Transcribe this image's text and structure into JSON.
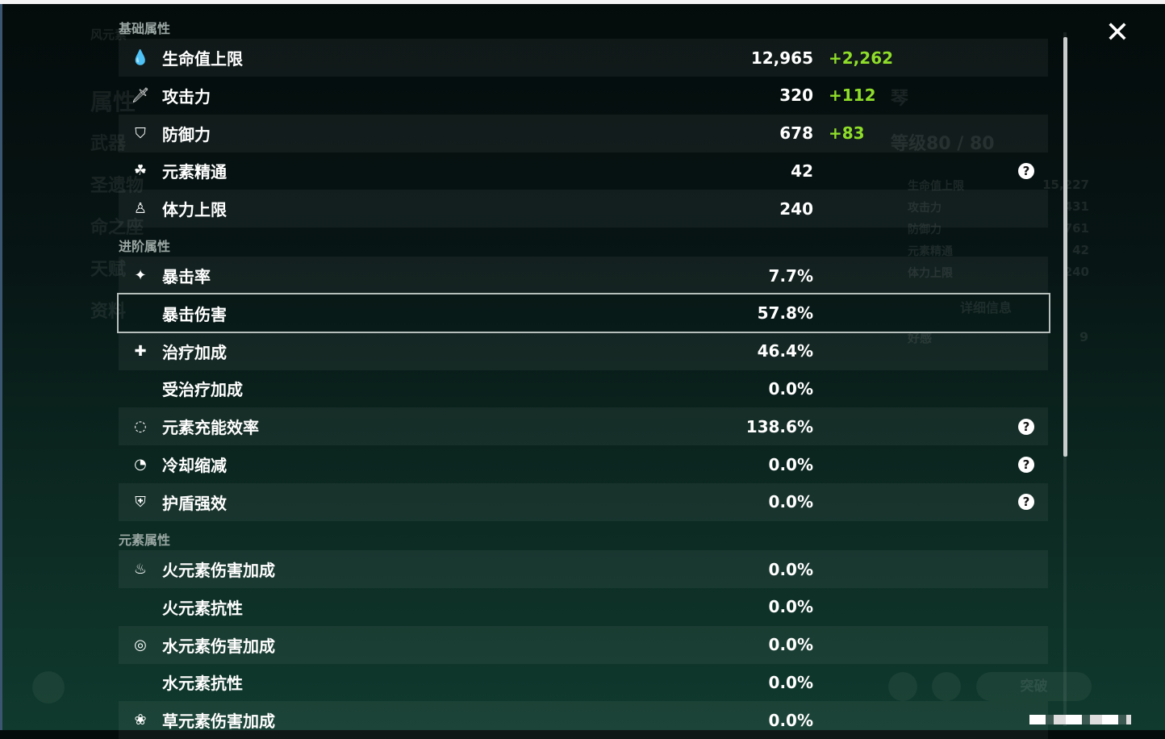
{
  "window": {
    "close_icon": "close-icon"
  },
  "background": {
    "element_label": "风元素",
    "nav": [
      "属性",
      "武器",
      "圣遗物",
      "命之座",
      "天赋",
      "资料"
    ],
    "character_name": "琴",
    "level": "等级80 / 80",
    "side_stats": [
      {
        "label": "生命值上限",
        "value": "15,227"
      },
      {
        "label": "攻击力",
        "value": "431"
      },
      {
        "label": "防御力",
        "value": "761"
      },
      {
        "label": "元素精通",
        "value": "42"
      },
      {
        "label": "体力上限",
        "value": "240"
      }
    ],
    "details_button": "详细信息",
    "friendship_label": "好感",
    "friendship_value": "9",
    "ascend_button": "突破"
  },
  "sections": [
    {
      "title": "基础属性",
      "rows": [
        {
          "icon": "hp-drop-icon",
          "glyph": "💧",
          "label": "生命值上限",
          "value": "12,965",
          "bonus": "+2,262"
        },
        {
          "icon": "sword-icon",
          "glyph": "🗡",
          "label": "攻击力",
          "value": "320",
          "bonus": "+112"
        },
        {
          "icon": "shield-icon",
          "glyph": "⛉",
          "label": "防御力",
          "value": "678",
          "bonus": "+83"
        },
        {
          "icon": "elemental-mastery-icon",
          "glyph": "☘",
          "label": "元素精通",
          "value": "42",
          "help": true
        },
        {
          "icon": "stamina-icon",
          "glyph": "♙",
          "label": "体力上限",
          "value": "240"
        }
      ]
    },
    {
      "title": "进阶属性",
      "rows": [
        {
          "icon": "crit-rate-icon",
          "glyph": "✦",
          "label": "暴击率",
          "value": "7.7%"
        },
        {
          "icon": "crit-dmg-icon",
          "glyph": "",
          "label": "暴击伤害",
          "value": "57.8%",
          "selected": true
        },
        {
          "icon": "healing-bonus-icon",
          "glyph": "✚",
          "label": "治疗加成",
          "value": "46.4%"
        },
        {
          "icon": "",
          "glyph": "",
          "label": "受治疗加成",
          "value": "0.0%"
        },
        {
          "icon": "energy-recharge-icon",
          "glyph": "◌",
          "label": "元素充能效率",
          "value": "138.6%",
          "help": true
        },
        {
          "icon": "cd-reduction-icon",
          "glyph": "◔",
          "label": "冷却缩减",
          "value": "0.0%",
          "help": true
        },
        {
          "icon": "shield-strength-icon",
          "glyph": "⛨",
          "label": "护盾强效",
          "value": "0.0%",
          "help": true
        }
      ]
    },
    {
      "title": "元素属性",
      "rows": [
        {
          "icon": "pyro-icon",
          "glyph": "♨",
          "label": "火元素伤害加成",
          "value": "0.0%"
        },
        {
          "icon": "",
          "glyph": "",
          "label": "火元素抗性",
          "value": "0.0%"
        },
        {
          "icon": "hydro-icon",
          "glyph": "◎",
          "label": "水元素伤害加成",
          "value": "0.0%"
        },
        {
          "icon": "",
          "glyph": "",
          "label": "水元素抗性",
          "value": "0.0%"
        },
        {
          "icon": "dendro-icon",
          "glyph": "❀",
          "label": "草元素伤害加成",
          "value": "0.0%"
        }
      ]
    }
  ],
  "help_glyph": "?",
  "colors": {
    "bonus": "#8fdd2a",
    "selected_border": "#b7bfbd"
  }
}
